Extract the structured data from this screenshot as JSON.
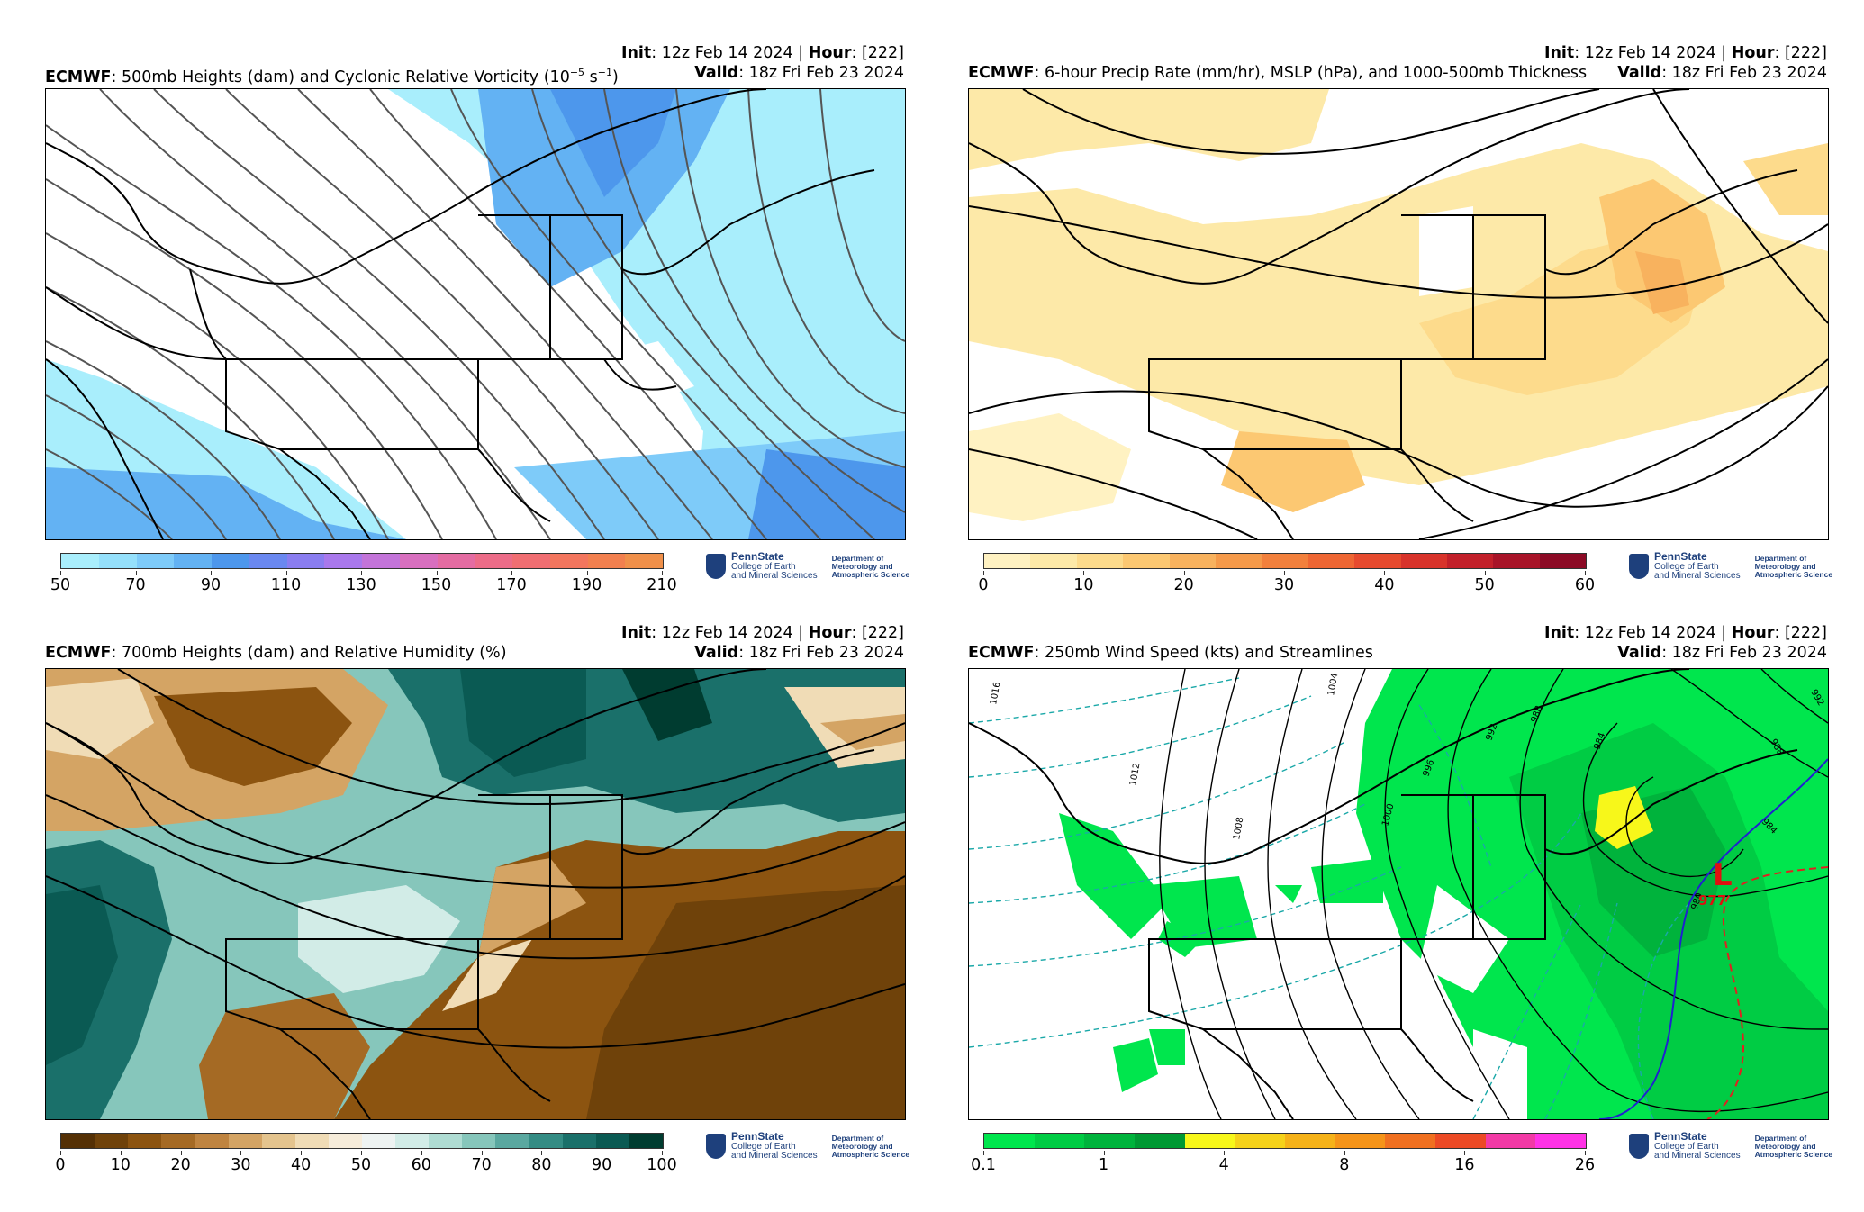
{
  "panels": [
    {
      "model": "ECMWF",
      "title": "500mb Heights (dam) and Cyclonic Relative Vorticity (10",
      "title_sup1": "−5",
      "title_mid": " s",
      "title_sup2": "−1",
      "title_end": ")",
      "init_label": "Init",
      "init_value": ": 12z Feb 14 2024 | ",
      "hour_label": "Hour",
      "hour_value": ": [222]",
      "valid_label": "Valid",
      "valid_value": ": 18z Fri Feb 23 2024",
      "colorbar_ticks": [
        "50",
        "70",
        "90",
        "110",
        "130",
        "150",
        "170",
        "190",
        "210"
      ],
      "colorbar_colors": [
        "#a9eefc",
        "#95e0fb",
        "#7ecbf9",
        "#63b2f3",
        "#4d97ec",
        "#6a88f0",
        "#8a7df0",
        "#a978ec",
        "#c374d9",
        "#d86fbf",
        "#e46ca2",
        "#ec6c88",
        "#f06e72",
        "#f3765e",
        "#f2804f",
        "#f0904a"
      ]
    },
    {
      "model": "ECMWF",
      "title": "6-hour Precip Rate (mm/hr), MSLP (hPa), and 1000-500mb Thickness",
      "init_label": "Init",
      "init_value": ": 12z Feb 14 2024 | ",
      "hour_label": "Hour",
      "hour_value": ": [222]",
      "valid_label": "Valid",
      "valid_value": ": 18z Fri Feb 23 2024",
      "colorbar_ticks": [
        "0",
        "10",
        "20",
        "30",
        "40",
        "50",
        "60"
      ],
      "colorbar_colors": [
        "#fff2c2",
        "#fde9a8",
        "#fddb8c",
        "#fcc872",
        "#f8b25e",
        "#f59a4a",
        "#f2803c",
        "#ee6633",
        "#e64a2e",
        "#d8332b",
        "#c2202a",
        "#a81428",
        "#8c0a25"
      ]
    },
    {
      "model": "ECMWF",
      "title": "700mb Heights (dam) and Relative Humidity (%)",
      "init_label": "Init",
      "init_value": ": 12z Feb 14 2024 | ",
      "hour_label": "Hour",
      "hour_value": ": [222]",
      "valid_label": "Valid",
      "valid_value": ": 18z Fri Feb 23 2024",
      "colorbar_ticks": [
        "0",
        "10",
        "20",
        "30",
        "40",
        "50",
        "60",
        "70",
        "80",
        "90",
        "100"
      ],
      "colorbar_colors": [
        "#543005",
        "#6f420a",
        "#8c5410",
        "#a56a24",
        "#bf8440",
        "#d4a464",
        "#e4c48e",
        "#f0dcb6",
        "#f6ecda",
        "#eef3f2",
        "#d2ece7",
        "#afdcd3",
        "#86c6bb",
        "#5aa8a0",
        "#348c84",
        "#1a706a",
        "#0a5a53",
        "#003c30"
      ]
    },
    {
      "model": "ECMWF",
      "title": "250mb Wind Speed (kts) and Streamlines",
      "init_label": "Init",
      "init_value": ": 12z Feb 14 2024 | ",
      "hour_label": "Hour",
      "hour_value": ": [222]",
      "valid_label": "Valid",
      "valid_value": ": 18z Fri Feb 23 2024",
      "colorbar_ticks": [
        "0.1",
        "1",
        "4",
        "8",
        "16",
        "26"
      ],
      "colorbar_colors": [
        "#00e64d",
        "#00cc44",
        "#00b33c",
        "#009933",
        "#f7f71a",
        "#f5d21a",
        "#f5b219",
        "#f59419",
        "#f07020",
        "#ec4a25",
        "#f23aa6",
        "#ff33e6"
      ],
      "low_label": "L",
      "low_pressure": "977",
      "isobar_labels": [
        "1004",
        "1012",
        "1008",
        "1000",
        "996",
        "992",
        "988",
        "984",
        "980",
        "984",
        "988",
        "992",
        "1016"
      ]
    }
  ],
  "logo": {
    "org": "PennState",
    "college_line1": "College of Earth",
    "college_line2": "and Mineral Sciences",
    "dept_line1": "Department of",
    "dept_line2": "Meteorology and",
    "dept_line3": "Atmospheric Science"
  }
}
